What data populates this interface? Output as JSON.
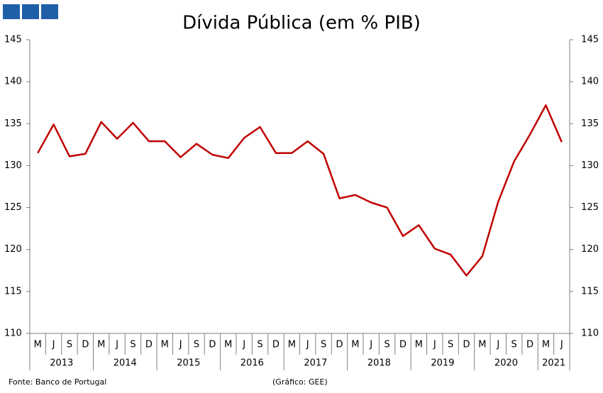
{
  "chart_data": {
    "type": "line",
    "title": "Dívida Pública (em % PIB)",
    "categories": [
      "M",
      "J",
      "S",
      "D",
      "M",
      "J",
      "S",
      "D",
      "M",
      "J",
      "S",
      "D",
      "M",
      "J",
      "S",
      "D",
      "M",
      "J",
      "S",
      "D",
      "M",
      "J",
      "S",
      "D",
      "M",
      "J",
      "S",
      "D",
      "M",
      "J",
      "S",
      "D",
      "M",
      "J"
    ],
    "groups": [
      "2013",
      "2014",
      "2015",
      "2016",
      "2017",
      "2018",
      "2019",
      "2020",
      "2021"
    ],
    "series": [
      {
        "name": "Dívida Pública",
        "color": "#c00000",
        "values": [
          131.5,
          134.9,
          131.1,
          131.4,
          135.2,
          133.2,
          135.1,
          132.9,
          132.9,
          131.0,
          132.6,
          131.3,
          130.9,
          133.3,
          134.6,
          131.5,
          131.5,
          132.9,
          131.4,
          126.1,
          126.5,
          125.6,
          125.0,
          121.6,
          122.9,
          120.1,
          119.4,
          116.9,
          119.2,
          125.7,
          130.5,
          133.7,
          137.2,
          132.8
        ]
      }
    ],
    "ylim": [
      110,
      145
    ],
    "yticks": [
      110,
      115,
      120,
      125,
      130,
      135,
      140,
      145
    ],
    "source": "Fonte: Banco de Portugal",
    "credit": "(Gráfico: GEE)"
  }
}
